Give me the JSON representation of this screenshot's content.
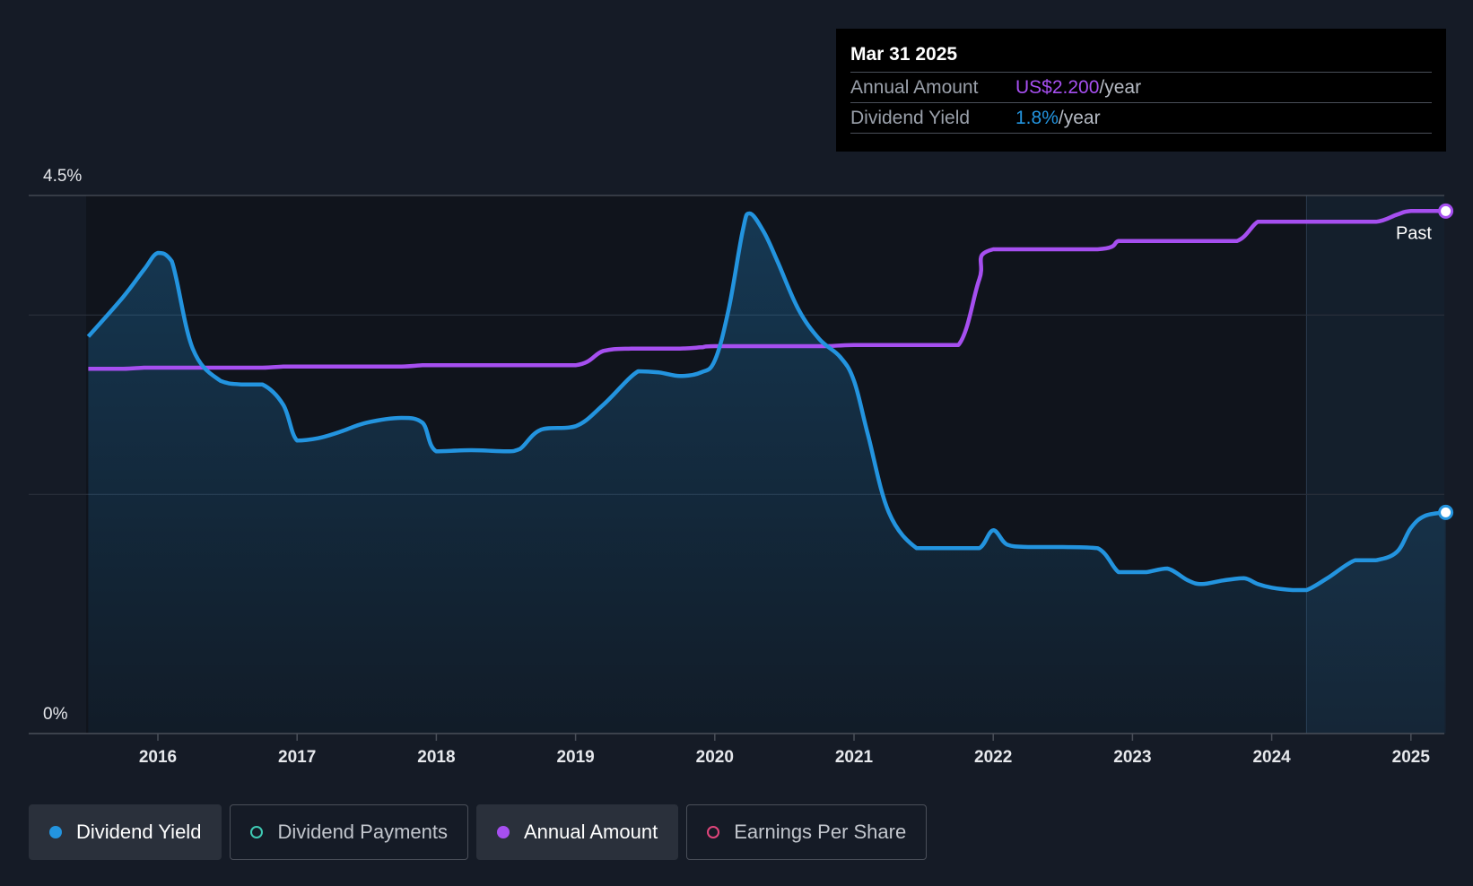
{
  "chart_data": {
    "type": "line",
    "y_axis": {
      "tick_labels": [
        "4.5%",
        "0%"
      ],
      "min": 0,
      "max": 4.5,
      "unit": "%"
    },
    "x_axis": {
      "tick_labels": [
        "2016",
        "2017",
        "2018",
        "2019",
        "2020",
        "2021",
        "2022",
        "2023",
        "2024",
        "2025"
      ],
      "min": 2015.33,
      "max": 2025.25
    },
    "past_label": "Past",
    "past_region_start": 2024.25,
    "series": [
      {
        "name": "Dividend Yield",
        "color": "#2394df",
        "area": true,
        "x": [
          2015.5,
          2015.75,
          2015.9,
          2016.0,
          2016.1,
          2016.25,
          2016.45,
          2016.6,
          2016.75,
          2016.9,
          2017.0,
          2017.15,
          2017.3,
          2017.5,
          2017.75,
          2017.9,
          2018.0,
          2018.25,
          2018.5,
          2018.6,
          2018.75,
          2019.0,
          2019.2,
          2019.45,
          2019.6,
          2019.75,
          2019.9,
          2020.0,
          2020.1,
          2020.2,
          2020.25,
          2020.35,
          2020.45,
          2020.6,
          2020.75,
          2020.9,
          2021.0,
          2021.1,
          2021.25,
          2021.45,
          2021.6,
          2021.75,
          2021.9,
          2022.0,
          2022.1,
          2022.25,
          2022.5,
          2022.75,
          2022.9,
          2023.0,
          2023.1,
          2023.25,
          2023.4,
          2023.5,
          2023.65,
          2023.8,
          2023.9,
          2024.0,
          2024.15,
          2024.25,
          2024.4,
          2024.6,
          2024.75,
          2024.9,
          2025.0,
          2025.1,
          2025.25
        ],
        "y": [
          3.32,
          3.65,
          3.88,
          4.02,
          3.95,
          3.22,
          2.95,
          2.92,
          2.92,
          2.75,
          2.45,
          2.47,
          2.52,
          2.6,
          2.64,
          2.6,
          2.36,
          2.37,
          2.36,
          2.38,
          2.54,
          2.57,
          2.75,
          3.03,
          3.02,
          2.99,
          3.02,
          3.12,
          3.55,
          4.2,
          4.35,
          4.2,
          3.95,
          3.55,
          3.3,
          3.15,
          2.95,
          2.5,
          1.85,
          1.55,
          1.55,
          1.55,
          1.55,
          1.7,
          1.58,
          1.56,
          1.56,
          1.55,
          1.35,
          1.35,
          1.35,
          1.38,
          1.28,
          1.25,
          1.28,
          1.3,
          1.25,
          1.22,
          1.2,
          1.2,
          1.3,
          1.45,
          1.45,
          1.52,
          1.72,
          1.82,
          1.85
        ]
      },
      {
        "name": "Annual Amount",
        "color": "#a64ff0",
        "area": false,
        "x": [
          2015.5,
          2015.75,
          2015.9,
          2016.0,
          2016.5,
          2016.75,
          2016.9,
          2017.0,
          2017.5,
          2017.75,
          2017.9,
          2018.0,
          2018.5,
          2019.0,
          2019.2,
          2019.4,
          2019.75,
          2019.9,
          2020.0,
          2020.5,
          2020.8,
          2021.0,
          2021.5,
          2021.75,
          2021.9,
          2022.0,
          2022.75,
          2022.9,
          2023.0,
          2023.5,
          2023.75,
          2023.9,
          2024.0,
          2024.5,
          2024.75,
          2024.9,
          2025.0,
          2025.25
        ],
        "y": [
          3.05,
          3.05,
          3.06,
          3.06,
          3.06,
          3.06,
          3.07,
          3.07,
          3.07,
          3.07,
          3.08,
          3.08,
          3.08,
          3.08,
          3.2,
          3.22,
          3.22,
          3.23,
          3.24,
          3.24,
          3.24,
          3.25,
          3.25,
          3.25,
          3.8,
          4.05,
          4.05,
          4.12,
          4.12,
          4.12,
          4.12,
          4.28,
          4.28,
          4.28,
          4.28,
          4.34,
          4.37,
          4.37
        ]
      }
    ],
    "tooltip": {
      "date": "Mar 31 2025",
      "rows": [
        {
          "label": "Annual Amount",
          "value": "US$2.200",
          "unit": "/year",
          "color": "#a64ff0"
        },
        {
          "label": "Dividend Yield",
          "value": "1.8%",
          "unit": "/year",
          "color": "#2394df"
        }
      ]
    },
    "legend": [
      {
        "label": "Dividend Yield",
        "active": true,
        "color": "#2394df",
        "filled": true
      },
      {
        "label": "Dividend Payments",
        "active": false,
        "color": "#3fc9b3",
        "filled": false
      },
      {
        "label": "Annual Amount",
        "active": true,
        "color": "#a64ff0",
        "filled": true
      },
      {
        "label": "Earnings Per Share",
        "active": false,
        "color": "#e0457b",
        "filled": false
      }
    ]
  }
}
